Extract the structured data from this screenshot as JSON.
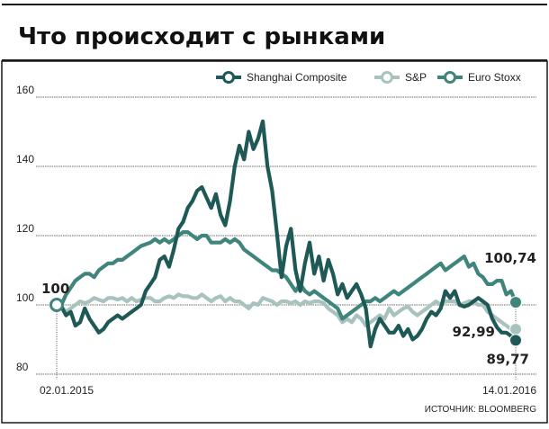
{
  "title": "Что происходит с рынками",
  "source": "ИСТОЧНИК: BLOOMBERG",
  "colors": {
    "shanghai": "#1f5956",
    "sp": "#a8c3be",
    "eurostoxx": "#3f857b",
    "grid": "#9a9a9a",
    "frame": "#1a1a1a"
  },
  "chart_data": {
    "type": "line",
    "title": "Что происходит с рынками",
    "xlabel": "",
    "ylabel": "",
    "ylim": [
      80,
      160
    ],
    "yticks": [
      80,
      100,
      120,
      140,
      160
    ],
    "x_start_label": "02.01.2015",
    "x_end_label": "14.01.2016",
    "grid": true,
    "legend": "top-right",
    "start_label": "100",
    "series": [
      {
        "name": "Shanghai Composite",
        "key": "shanghai",
        "end_label": "89,77",
        "values": [
          100,
          99.5,
          97,
          98,
          94,
          95,
          99,
          96,
          94,
          92,
          93,
          95,
          96,
          97,
          96,
          97,
          98,
          99,
          100,
          104,
          106,
          108,
          113,
          114,
          111,
          116,
          122,
          124,
          128,
          130,
          133,
          134,
          131,
          128,
          132,
          126,
          123,
          130,
          140,
          146,
          142,
          150,
          145,
          148,
          153,
          140,
          133,
          121,
          108,
          117,
          122,
          110,
          104,
          112,
          118,
          109,
          114,
          107,
          113,
          109,
          103,
          106,
          102,
          104,
          106,
          103,
          99,
          88,
          93,
          96,
          94,
          92,
          92,
          94,
          91,
          93,
          90,
          91,
          93,
          96,
          98,
          97,
          99,
          104,
          102,
          104,
          100,
          99.5,
          100,
          101,
          102,
          101,
          100,
          96,
          93.5,
          92,
          92,
          91,
          89.77
        ]
      },
      {
        "name": "S&P",
        "key": "sp",
        "end_label": "92,99",
        "values": [
          100,
          99.5,
          98,
          99,
          100,
          101,
          100.5,
          101,
          102,
          101.5,
          101,
          102,
          102,
          101.5,
          102,
          101,
          102,
          101,
          101.5,
          102,
          102,
          101,
          101,
          102,
          102.5,
          102,
          103,
          102.5,
          102.5,
          102,
          102,
          103,
          102,
          101,
          102,
          102.5,
          101,
          102,
          101,
          101,
          100,
          99,
          100.5,
          100,
          102,
          101.5,
          101,
          100,
          101,
          101,
          100.5,
          101,
          100,
          101,
          100.5,
          101,
          101,
          100.5,
          99,
          98,
          97,
          95,
          96,
          95,
          97,
          96,
          94,
          95,
          96,
          97,
          96,
          99,
          97,
          98,
          99,
          99.5,
          98,
          97,
          98,
          99,
          100,
          101,
          100,
          101,
          101,
          101,
          100,
          100.5,
          101,
          101,
          100,
          100,
          98,
          97,
          96,
          95,
          94,
          93,
          92.99
        ]
      },
      {
        "name": "Euro Stoxx",
        "key": "eurostoxx",
        "end_label": "100,74",
        "values": [
          100,
          100,
          103,
          105,
          107,
          108,
          109,
          109,
          108,
          110,
          111,
          112,
          112,
          113,
          113,
          114,
          115,
          116,
          117,
          117.5,
          118,
          119,
          118,
          119,
          118,
          119,
          120,
          121,
          121,
          120,
          119,
          120,
          120,
          118,
          118,
          118,
          119,
          118,
          119,
          118,
          116,
          115,
          114,
          113,
          112,
          111,
          110,
          110,
          109,
          108,
          106,
          104,
          106,
          104,
          103,
          104,
          103,
          102,
          101,
          100,
          99,
          96,
          97,
          98,
          99,
          100,
          101,
          101,
          102,
          101,
          102,
          103,
          104,
          103,
          104,
          105,
          106,
          107,
          108,
          109,
          110,
          111,
          112,
          110,
          111,
          112,
          113,
          114,
          111,
          112,
          109,
          108,
          106,
          106,
          107,
          107,
          103,
          104,
          100.74
        ]
      }
    ]
  }
}
